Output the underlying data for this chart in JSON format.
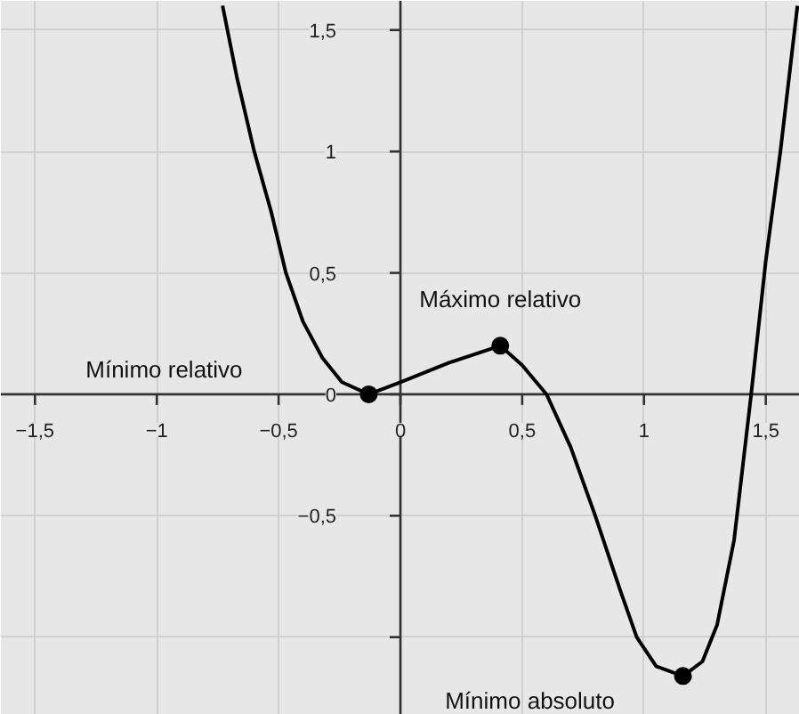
{
  "chart_data": {
    "type": "line",
    "xlim": [
      -1.64,
      1.64
    ],
    "ylim": [
      -1.32,
      1.62
    ],
    "xticks": [
      {
        "value": -1.5,
        "label": "−1,5"
      },
      {
        "value": -1,
        "label": "−1"
      },
      {
        "value": -0.5,
        "label": "−0,5"
      },
      {
        "value": 0,
        "label": "0"
      },
      {
        "value": 0.5,
        "label": "0,5"
      },
      {
        "value": 1,
        "label": "1"
      },
      {
        "value": 1.5,
        "label": "1,5"
      }
    ],
    "yticks": [
      {
        "value": -1,
        "label": null
      },
      {
        "value": -0.5,
        "label": "−0,5"
      },
      {
        "value": 0,
        "label": "0"
      },
      {
        "value": 0.5,
        "label": "0,5"
      },
      {
        "value": 1,
        "label": "1"
      },
      {
        "value": 1.5,
        "label": "1,5"
      }
    ],
    "grid": true,
    "series": [
      {
        "color": "#000000",
        "x": [
          -0.73,
          -0.67,
          -0.6,
          -0.53,
          -0.47,
          -0.4,
          -0.32,
          -0.24,
          -0.13,
          0,
          0.2,
          0.41,
          0.5,
          0.6,
          0.7,
          0.8,
          0.9,
          0.97,
          1.05,
          1.16,
          1.24,
          1.3,
          1.37,
          1.44,
          1.5,
          1.56,
          1.63
        ],
        "values": [
          1.6,
          1.3,
          1.0,
          0.75,
          0.5,
          0.3,
          0.15,
          0.05,
          0,
          0.05,
          0.13,
          0.2,
          0.12,
          0,
          -0.22,
          -0.5,
          -0.8,
          -1.0,
          -1.12,
          -1.16,
          -1.1,
          -0.95,
          -0.6,
          0,
          0.55,
          1.0,
          1.6
        ]
      },
      {
        "type": "scatter",
        "color": "#000000",
        "x": [
          -0.13,
          0.41,
          1.16
        ],
        "values": [
          0,
          0.2,
          -1.16
        ]
      }
    ],
    "annotations": [
      "Mínimo relativo",
      "Máximo relativo",
      "Mínimo absoluto"
    ]
  }
}
